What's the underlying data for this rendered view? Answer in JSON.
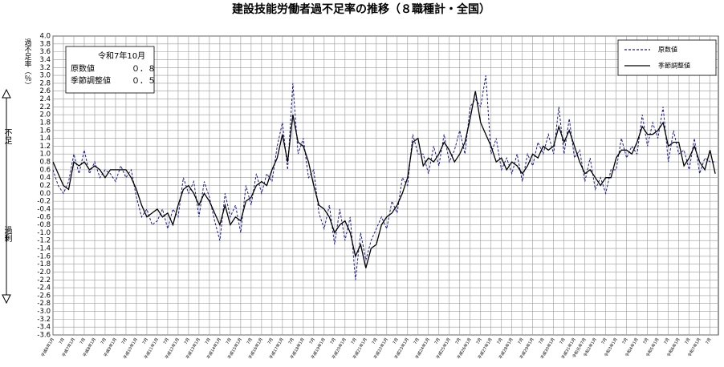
{
  "chart_data": {
    "type": "line",
    "title": "建設技能労働者過不足率の推移（８職種計・全国）",
    "y_label": "過不足率（％）",
    "side_labels": {
      "top": "不足",
      "bottom": "過剰"
    },
    "annotation": {
      "title": "令和7年10月",
      "rows": [
        {
          "name": "原数値",
          "value": 0.8,
          "label": "０．８"
        },
        {
          "name": "季節調整値",
          "value": 0.5,
          "label": "０．５"
        }
      ]
    },
    "legend": "top-right",
    "grid": true,
    "x": [
      1994,
      1994.25,
      1994.5,
      1994.75,
      1995,
      1995.25,
      1995.5,
      1995.75,
      1996,
      1996.25,
      1996.5,
      1996.75,
      1997,
      1997.25,
      1997.5,
      1997.75,
      1998,
      1998.25,
      1998.5,
      1998.75,
      1999,
      1999.25,
      1999.5,
      1999.75,
      2000,
      2000.25,
      2000.5,
      2000.75,
      2001,
      2001.25,
      2001.5,
      2001.75,
      2002,
      2002.25,
      2002.5,
      2002.75,
      2003,
      2003.25,
      2003.5,
      2003.75,
      2004,
      2004.25,
      2004.5,
      2004.75,
      2005,
      2005.25,
      2005.5,
      2005.75,
      2006,
      2006.25,
      2006.5,
      2006.75,
      2007,
      2007.25,
      2007.5,
      2007.75,
      2008,
      2008.25,
      2008.5,
      2008.75,
      2009,
      2009.25,
      2009.5,
      2009.75,
      2010,
      2010.25,
      2010.5,
      2010.75,
      2011,
      2011.25,
      2011.5,
      2011.75,
      2012,
      2012.25,
      2012.5,
      2012.75,
      2013,
      2013.25,
      2013.5,
      2013.75,
      2014,
      2014.25,
      2014.5,
      2014.75,
      2015,
      2015.25,
      2015.5,
      2015.75,
      2016,
      2016.25,
      2016.5,
      2016.75,
      2017,
      2017.25,
      2017.5,
      2017.75,
      2018,
      2018.25,
      2018.5,
      2018.75,
      2019,
      2019.25,
      2019.5,
      2019.75,
      2020,
      2020.25,
      2020.5,
      2020.75,
      2021,
      2021.25,
      2021.5,
      2021.75,
      2022,
      2022.25,
      2022.5,
      2022.75,
      2023,
      2023.25,
      2023.5,
      2023.75,
      2024,
      2024.25,
      2024.5,
      2024.75,
      2025,
      2025.25,
      2025.5,
      2025.75
    ],
    "series": [
      {
        "name": "原数値",
        "color": "#1a1a9c",
        "dashed": true,
        "values": [
          0.6,
          0.2,
          0.0,
          0.3,
          1.0,
          0.5,
          1.1,
          0.5,
          0.8,
          0.4,
          0.6,
          0.5,
          0.3,
          0.7,
          0.4,
          0.6,
          -0.1,
          -0.6,
          -0.4,
          -0.8,
          -0.7,
          -0.4,
          -0.9,
          -0.4,
          -0.6,
          0.4,
          0.0,
          0.3,
          -0.6,
          0.3,
          -0.1,
          -0.7,
          -1.2,
          0.0,
          -0.6,
          -0.3,
          -1.0,
          0.2,
          -0.3,
          0.5,
          0.0,
          0.5,
          0.3,
          1.2,
          1.8,
          0.6,
          2.8,
          1.0,
          1.4,
          0.4,
          0.6,
          -0.5,
          -0.9,
          -0.3,
          -1.3,
          -0.4,
          -1.2,
          -0.6,
          -2.2,
          -1.0,
          -1.7,
          -1.2,
          -0.9,
          -0.6,
          -0.9,
          -0.2,
          -0.5,
          0.4,
          0.2,
          1.5,
          1.0,
          1.0,
          0.5,
          1.2,
          0.7,
          1.5,
          0.8,
          1.1,
          1.6,
          1.0,
          2.2,
          2.4,
          2.2,
          3.0,
          1.0,
          1.4,
          0.6,
          0.9,
          0.5,
          1.0,
          0.3,
          1.0,
          0.7,
          1.3,
          1.0,
          1.5,
          1.0,
          2.2,
          1.0,
          1.9,
          0.9,
          1.1,
          0.3,
          0.9,
          0.1,
          0.4,
          0.0,
          0.6,
          0.6,
          1.4,
          0.9,
          1.2,
          1.0,
          2.0,
          1.2,
          1.8,
          1.4,
          2.2,
          0.8,
          1.6,
          1.0,
          1.1,
          0.6,
          1.4,
          0.5,
          0.9,
          0.8,
          0.8
        ]
      },
      {
        "name": "季節調整値",
        "color": "#000000",
        "dashed": false,
        "values": [
          0.8,
          0.5,
          0.2,
          0.1,
          0.8,
          0.7,
          0.8,
          0.6,
          0.7,
          0.6,
          0.4,
          0.6,
          0.6,
          0.6,
          0.6,
          0.4,
          0.1,
          -0.3,
          -0.6,
          -0.5,
          -0.4,
          -0.6,
          -0.5,
          -0.8,
          -0.3,
          0.1,
          0.2,
          0.0,
          -0.3,
          0.0,
          -0.2,
          -0.5,
          -0.8,
          -0.3,
          -0.8,
          -0.6,
          -0.7,
          -0.2,
          -0.1,
          0.2,
          0.3,
          0.2,
          0.6,
          0.9,
          1.5,
          0.8,
          2.0,
          1.3,
          1.2,
          0.8,
          0.2,
          -0.3,
          -0.4,
          -0.6,
          -1.0,
          -0.8,
          -0.7,
          -1.0,
          -1.6,
          -1.3,
          -1.9,
          -1.4,
          -1.3,
          -0.8,
          -0.6,
          -0.5,
          -0.3,
          0.0,
          0.4,
          1.3,
          1.4,
          0.7,
          0.9,
          0.8,
          1.0,
          1.3,
          1.1,
          0.8,
          1.0,
          1.3,
          1.9,
          2.6,
          1.8,
          1.5,
          1.2,
          0.8,
          0.9,
          0.6,
          0.8,
          0.7,
          0.5,
          0.7,
          1.0,
          0.9,
          1.2,
          1.1,
          1.2,
          1.7,
          1.3,
          1.6,
          1.2,
          0.8,
          0.5,
          0.6,
          0.4,
          0.2,
          0.4,
          0.4,
          0.9,
          1.1,
          1.1,
          1.0,
          1.3,
          1.7,
          1.5,
          1.5,
          1.6,
          1.8,
          1.2,
          1.3,
          1.3,
          0.7,
          0.9,
          1.2,
          0.8,
          0.6,
          1.1,
          0.5
        ]
      }
    ],
    "xlim": [
      1994,
      2025.9
    ],
    "xticks": [
      {
        "value": 1994,
        "label": "平成6年1月"
      },
      {
        "value": 1994.5,
        "label": "7月"
      },
      {
        "value": 1995,
        "label": "平成7年1月"
      },
      {
        "value": 1995.5,
        "label": "7月"
      },
      {
        "value": 1996,
        "label": "平成8年1月"
      },
      {
        "value": 1996.5,
        "label": "7月"
      },
      {
        "value": 1997,
        "label": "平成9年1月"
      },
      {
        "value": 1997.5,
        "label": "7月"
      },
      {
        "value": 1998,
        "label": "平成10年1月"
      },
      {
        "value": 1998.5,
        "label": "7月"
      },
      {
        "value": 1999,
        "label": "平成11年1月"
      },
      {
        "value": 1999.5,
        "label": "7月"
      },
      {
        "value": 2000,
        "label": "平成12年1月"
      },
      {
        "value": 2000.5,
        "label": "7月"
      },
      {
        "value": 2001,
        "label": "平成13年1月"
      },
      {
        "value": 2001.5,
        "label": "7月"
      },
      {
        "value": 2002,
        "label": "平成14年1月"
      },
      {
        "value": 2002.5,
        "label": "7月"
      },
      {
        "value": 2003,
        "label": "平成15年1月"
      },
      {
        "value": 2003.5,
        "label": "7月"
      },
      {
        "value": 2004,
        "label": "平成16年1月"
      },
      {
        "value": 2004.5,
        "label": "7月"
      },
      {
        "value": 2005,
        "label": "平成17年1月"
      },
      {
        "value": 2005.5,
        "label": "7月"
      },
      {
        "value": 2006,
        "label": "平成18年1月"
      },
      {
        "value": 2006.5,
        "label": "7月"
      },
      {
        "value": 2007,
        "label": "平成19年1月"
      },
      {
        "value": 2007.5,
        "label": "7月"
      },
      {
        "value": 2008,
        "label": "平成20年1月"
      },
      {
        "value": 2008.5,
        "label": "7月"
      },
      {
        "value": 2009,
        "label": "平成21年1月"
      },
      {
        "value": 2009.5,
        "label": "7月"
      },
      {
        "value": 2010,
        "label": "平成22年1月"
      },
      {
        "value": 2010.5,
        "label": "7月"
      },
      {
        "value": 2011,
        "label": "平成23年1月"
      },
      {
        "value": 2011.5,
        "label": "7月"
      },
      {
        "value": 2012,
        "label": "平成24年1月"
      },
      {
        "value": 2012.5,
        "label": "7月"
      },
      {
        "value": 2013,
        "label": "平成25年1月"
      },
      {
        "value": 2013.5,
        "label": "7月"
      },
      {
        "value": 2014,
        "label": "平成26年1月"
      },
      {
        "value": 2014.5,
        "label": "7月"
      },
      {
        "value": 2015,
        "label": "平成27年1月"
      },
      {
        "value": 2015.5,
        "label": "7月"
      },
      {
        "value": 2016,
        "label": "平成28年1月"
      },
      {
        "value": 2016.5,
        "label": "7月"
      },
      {
        "value": 2017,
        "label": "平成29年1月"
      },
      {
        "value": 2017.5,
        "label": "7月"
      },
      {
        "value": 2018,
        "label": "平成30年1月"
      },
      {
        "value": 2018.5,
        "label": "7月"
      },
      {
        "value": 2019,
        "label": "平成31年1月"
      },
      {
        "value": 2019.5,
        "label": "令和元年7月"
      },
      {
        "value": 2020,
        "label": "令和2年1月"
      },
      {
        "value": 2020.5,
        "label": "7月"
      },
      {
        "value": 2021,
        "label": "令和3年1月"
      },
      {
        "value": 2021.5,
        "label": "7月"
      },
      {
        "value": 2022,
        "label": "令和4年1月"
      },
      {
        "value": 2022.5,
        "label": "7月"
      },
      {
        "value": 2023,
        "label": "令和5年1月"
      },
      {
        "value": 2023.5,
        "label": "7月"
      },
      {
        "value": 2024,
        "label": "令和6年1月"
      },
      {
        "value": 2024.5,
        "label": "7月"
      },
      {
        "value": 2025,
        "label": "令和7年1月"
      },
      {
        "value": 2025.5,
        "label": "7月"
      }
    ],
    "ylim": [
      -3.6,
      4.0
    ],
    "yticks": [
      {
        "value": 4,
        "label": "4.0"
      },
      3.8,
      3.6,
      3.4,
      3.2,
      {
        "value": 3,
        "label": "3.0"
      },
      2.8,
      2.6,
      2.4,
      2.2,
      {
        "value": 2,
        "label": "2.0"
      },
      1.8,
      1.6,
      1.4,
      1.2,
      {
        "value": 1,
        "label": "1.0"
      },
      0.8,
      0.6,
      0.4,
      0.2,
      {
        "value": 0,
        "label": "0.0"
      },
      -0.2,
      -0.4,
      -0.6,
      -0.8,
      {
        "value": -1,
        "label": "-1.0"
      },
      -1.2,
      -1.4,
      -1.6,
      -1.8,
      {
        "value": -2,
        "label": "-2.0"
      },
      -2.2,
      -2.4,
      -2.6,
      -2.8,
      {
        "value": -3,
        "label": "-3.0"
      },
      -3.2,
      -3.4,
      -3.6
    ]
  }
}
